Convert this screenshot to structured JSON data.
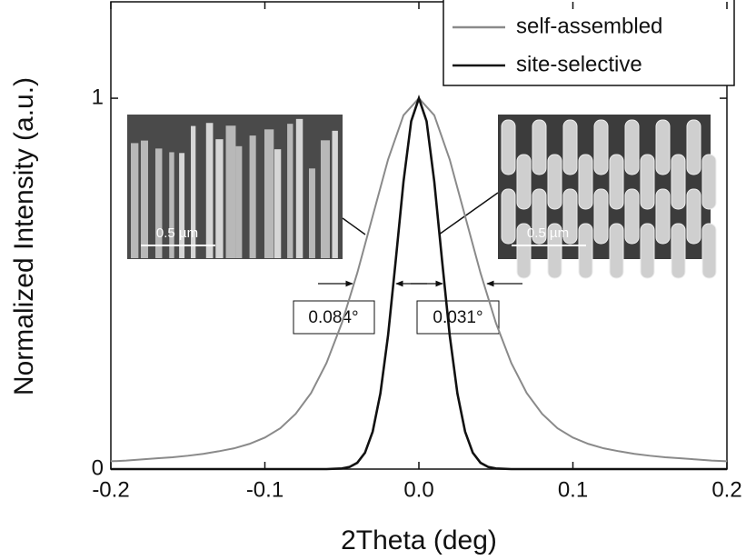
{
  "chart_data": {
    "type": "line",
    "x_label": "2Theta (deg)",
    "y_label": "Normalized Intensity (a.u.)",
    "xlim": [
      -0.2,
      0.2
    ],
    "ylim": [
      0,
      1.26
    ],
    "xticks": [
      -0.2,
      -0.1,
      {
        "value": 0,
        "label": "0.0"
      },
      0.1,
      0.2
    ],
    "yticks": [
      0,
      1
    ],
    "legend": "top-right",
    "annotations": [
      "0.084°",
      "0.031°"
    ],
    "inset_labels": [
      "0.5 µm",
      "0.5 µm"
    ],
    "series": [
      {
        "name": "self-assembled",
        "color": "#8a8a8a",
        "x": [
          -0.2,
          -0.19,
          -0.18,
          -0.17,
          -0.16,
          -0.15,
          -0.14,
          -0.13,
          -0.12,
          -0.11,
          -0.1,
          -0.09,
          -0.08,
          -0.07,
          -0.06,
          -0.05,
          -0.04,
          -0.03,
          -0.02,
          -0.01,
          0,
          0.01,
          0.02,
          0.03,
          0.04,
          0.05,
          0.06,
          0.07,
          0.08,
          0.09,
          0.1,
          0.11,
          0.12,
          0.13,
          0.14,
          0.15,
          0.16,
          0.17,
          0.18,
          0.19,
          0.2
        ],
        "values": [
          0.021,
          0.023,
          0.026,
          0.029,
          0.032,
          0.036,
          0.041,
          0.048,
          0.056,
          0.068,
          0.085,
          0.11,
          0.149,
          0.205,
          0.286,
          0.394,
          0.529,
          0.682,
          0.835,
          0.954,
          1,
          0.954,
          0.835,
          0.682,
          0.529,
          0.394,
          0.286,
          0.205,
          0.149,
          0.11,
          0.085,
          0.068,
          0.056,
          0.048,
          0.041,
          0.036,
          0.032,
          0.029,
          0.026,
          0.023,
          0.021
        ]
      },
      {
        "name": "site-selective",
        "color": "#111111",
        "x": [
          -0.2,
          -0.06,
          -0.05,
          -0.045,
          -0.04,
          -0.035,
          -0.03,
          -0.025,
          -0.02,
          -0.015,
          -0.01,
          -0.005,
          0,
          0.005,
          0.01,
          0.015,
          0.02,
          0.025,
          0.03,
          0.035,
          0.04,
          0.045,
          0.05,
          0.06,
          0.2
        ],
        "values": [
          0,
          0,
          0.0017,
          0.0058,
          0.017,
          0.044,
          0.101,
          0.204,
          0.361,
          0.564,
          0.775,
          0.938,
          1,
          0.938,
          0.775,
          0.564,
          0.361,
          0.204,
          0.101,
          0.044,
          0.017,
          0.0058,
          0.0017,
          0,
          0
        ]
      }
    ]
  }
}
